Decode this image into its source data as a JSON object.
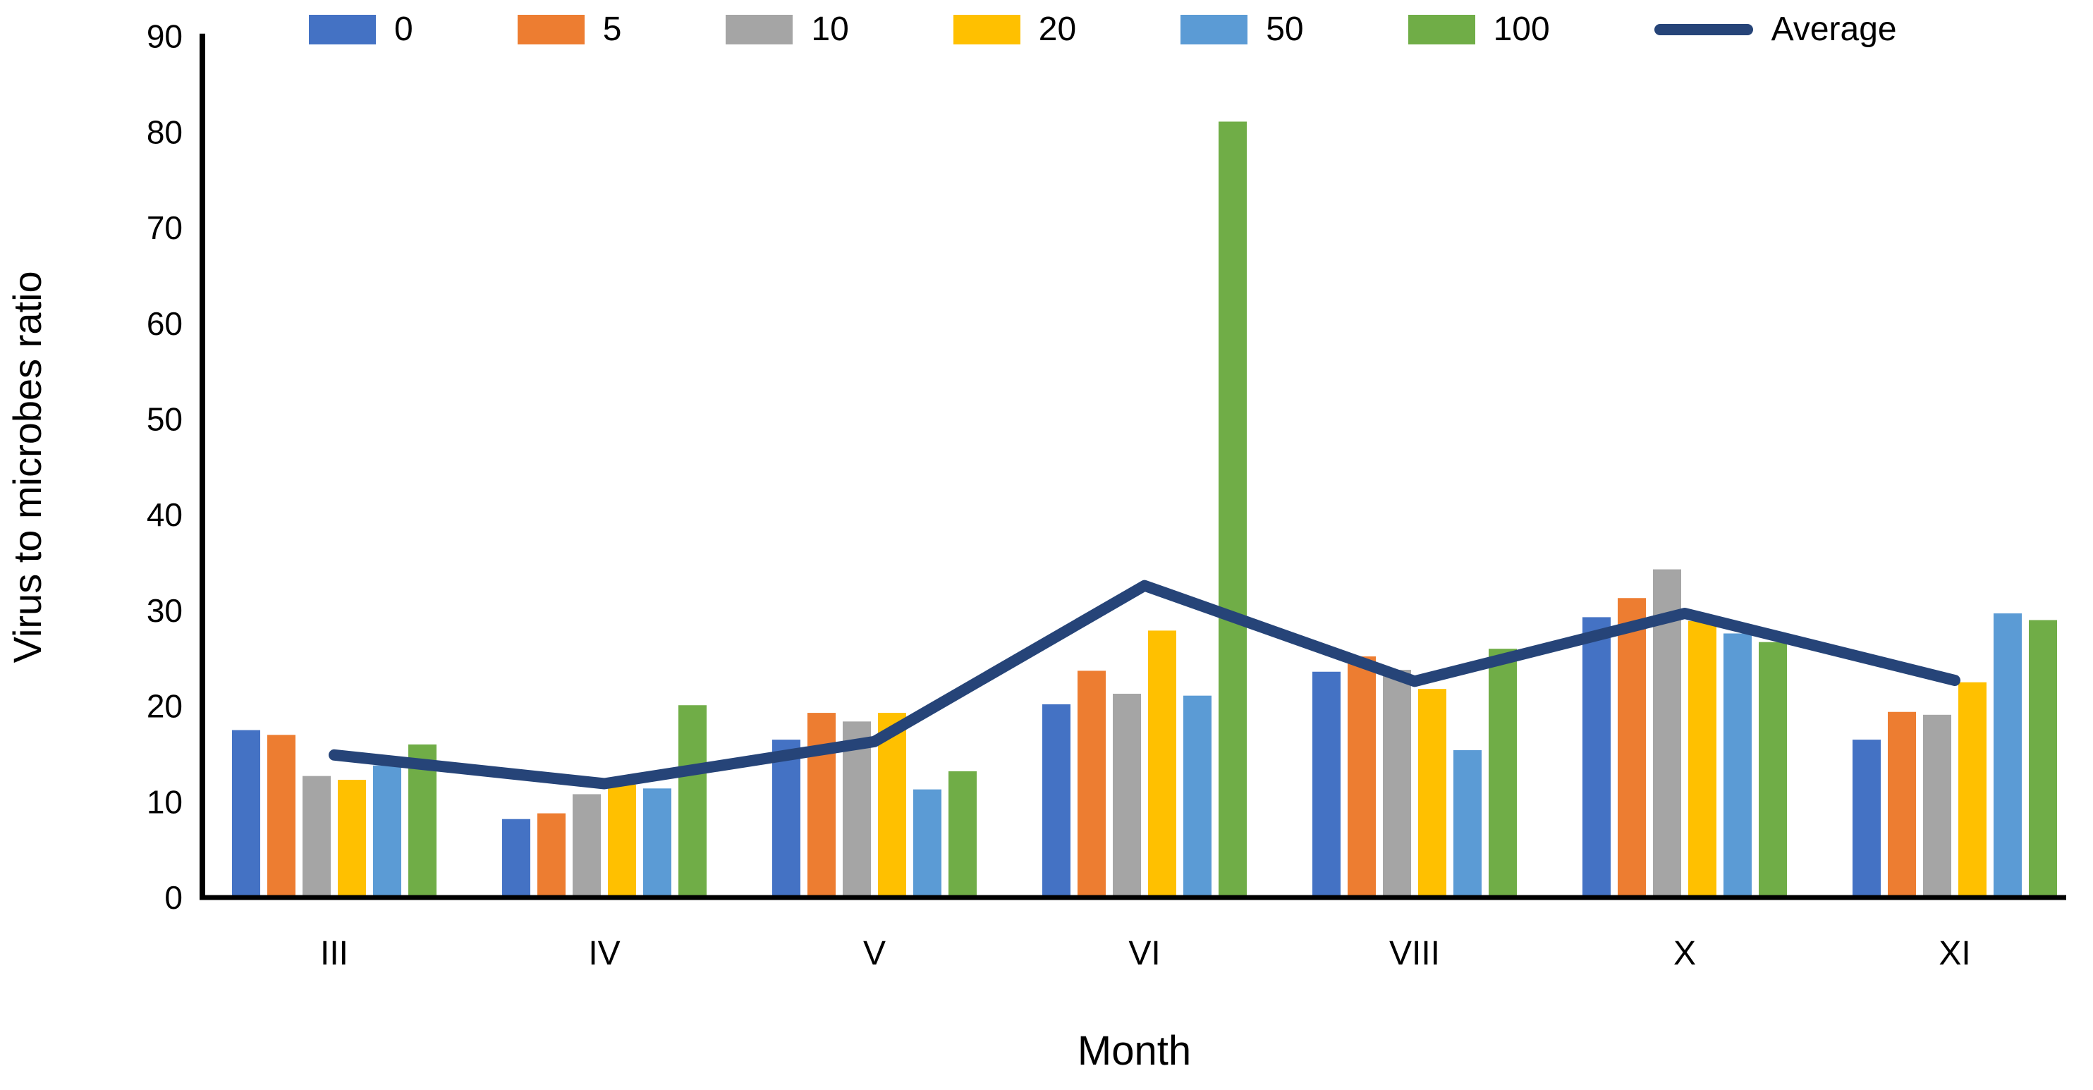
{
  "chart_data": {
    "type": "bar",
    "title": "",
    "xlabel": "Month",
    "ylabel": "Virus to microbes ratio",
    "categories": [
      "III",
      "IV",
      "V",
      "VI",
      "VIII",
      "X",
      "XI"
    ],
    "series": [
      {
        "name": "0",
        "color": "#4472C4",
        "values": [
          17.5,
          8.2,
          16.5,
          20.2,
          23.6,
          29.3,
          16.5
        ]
      },
      {
        "name": "5",
        "color": "#ED7D31",
        "values": [
          17.0,
          8.8,
          19.3,
          23.7,
          25.2,
          31.3,
          19.4
        ]
      },
      {
        "name": "10",
        "color": "#A5A5A5",
        "values": [
          12.7,
          10.8,
          18.4,
          21.3,
          23.8,
          34.3,
          19.1
        ]
      },
      {
        "name": "20",
        "color": "#FFC000",
        "values": [
          12.3,
          11.8,
          19.3,
          27.9,
          21.8,
          28.9,
          22.5
        ]
      },
      {
        "name": "50",
        "color": "#5B9BD5",
        "values": [
          13.8,
          11.4,
          11.3,
          21.1,
          15.4,
          27.6,
          29.7
        ]
      },
      {
        "name": "100",
        "color": "#70AD47",
        "values": [
          16.0,
          20.1,
          13.2,
          81.1,
          26.0,
          26.7,
          29.0
        ]
      }
    ],
    "line_series": {
      "name": "Average",
      "color": "#264478",
      "values": [
        14.9,
        11.9,
        16.3,
        32.6,
        22.6,
        29.7,
        22.7
      ]
    },
    "ylim": [
      0,
      90
    ],
    "ytick_step": 10,
    "yticks": [
      0,
      10,
      20,
      30,
      40,
      50,
      60,
      70,
      80,
      90
    ],
    "grid": false,
    "legend_position": "top",
    "axis_color": "#000000",
    "text_color": "#000000"
  }
}
